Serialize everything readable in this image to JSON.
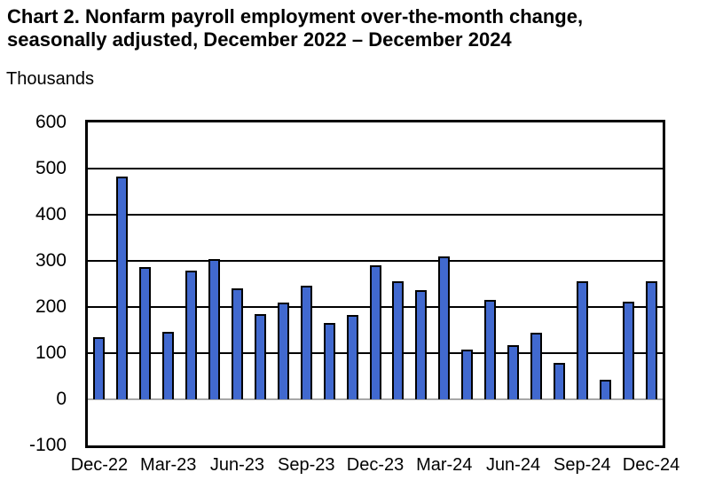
{
  "page": {
    "title_line1": "Chart 2. Nonfarm payroll employment over-the-month change,",
    "title_line2": "seasonally adjusted, December 2022 – December 2024",
    "units_label": "Thousands"
  },
  "chart_data": {
    "type": "bar",
    "title": "Chart 2. Nonfarm payroll employment over-the-month change, seasonally adjusted, December 2022 – December 2024",
    "xlabel": "",
    "ylabel": "Thousands",
    "categories": [
      "Dec-22",
      "Jan-23",
      "Feb-23",
      "Mar-23",
      "Apr-23",
      "May-23",
      "Jun-23",
      "Jul-23",
      "Aug-23",
      "Sep-23",
      "Oct-23",
      "Nov-23",
      "Dec-23",
      "Jan-24",
      "Feb-24",
      "Mar-24",
      "Apr-24",
      "May-24",
      "Jun-24",
      "Jul-24",
      "Aug-24",
      "Sep-24",
      "Oct-24",
      "Nov-24",
      "Dec-24"
    ],
    "values": [
      135,
      482,
      287,
      146,
      278,
      303,
      240,
      184,
      210,
      246,
      165,
      182,
      290,
      256,
      236,
      310,
      108,
      216,
      118,
      144,
      78,
      255,
      43,
      212,
      256
    ],
    "x_tick_labels": [
      "Dec-22",
      "Mar-23",
      "Jun-23",
      "Sep-23",
      "Dec-23",
      "Mar-24",
      "Jun-24",
      "Sep-24",
      "Dec-24"
    ],
    "x_tick_every_n_bars": 3,
    "y_ticks": [
      600,
      500,
      400,
      300,
      200,
      100,
      0,
      -100
    ],
    "ylim": [
      -100,
      600
    ],
    "grid": true,
    "legend": "none",
    "bar_color": "#4169CF",
    "bar_border_color": "#000000",
    "zero_line_color": "#A8A8A8",
    "gridline_color": "#000000"
  }
}
